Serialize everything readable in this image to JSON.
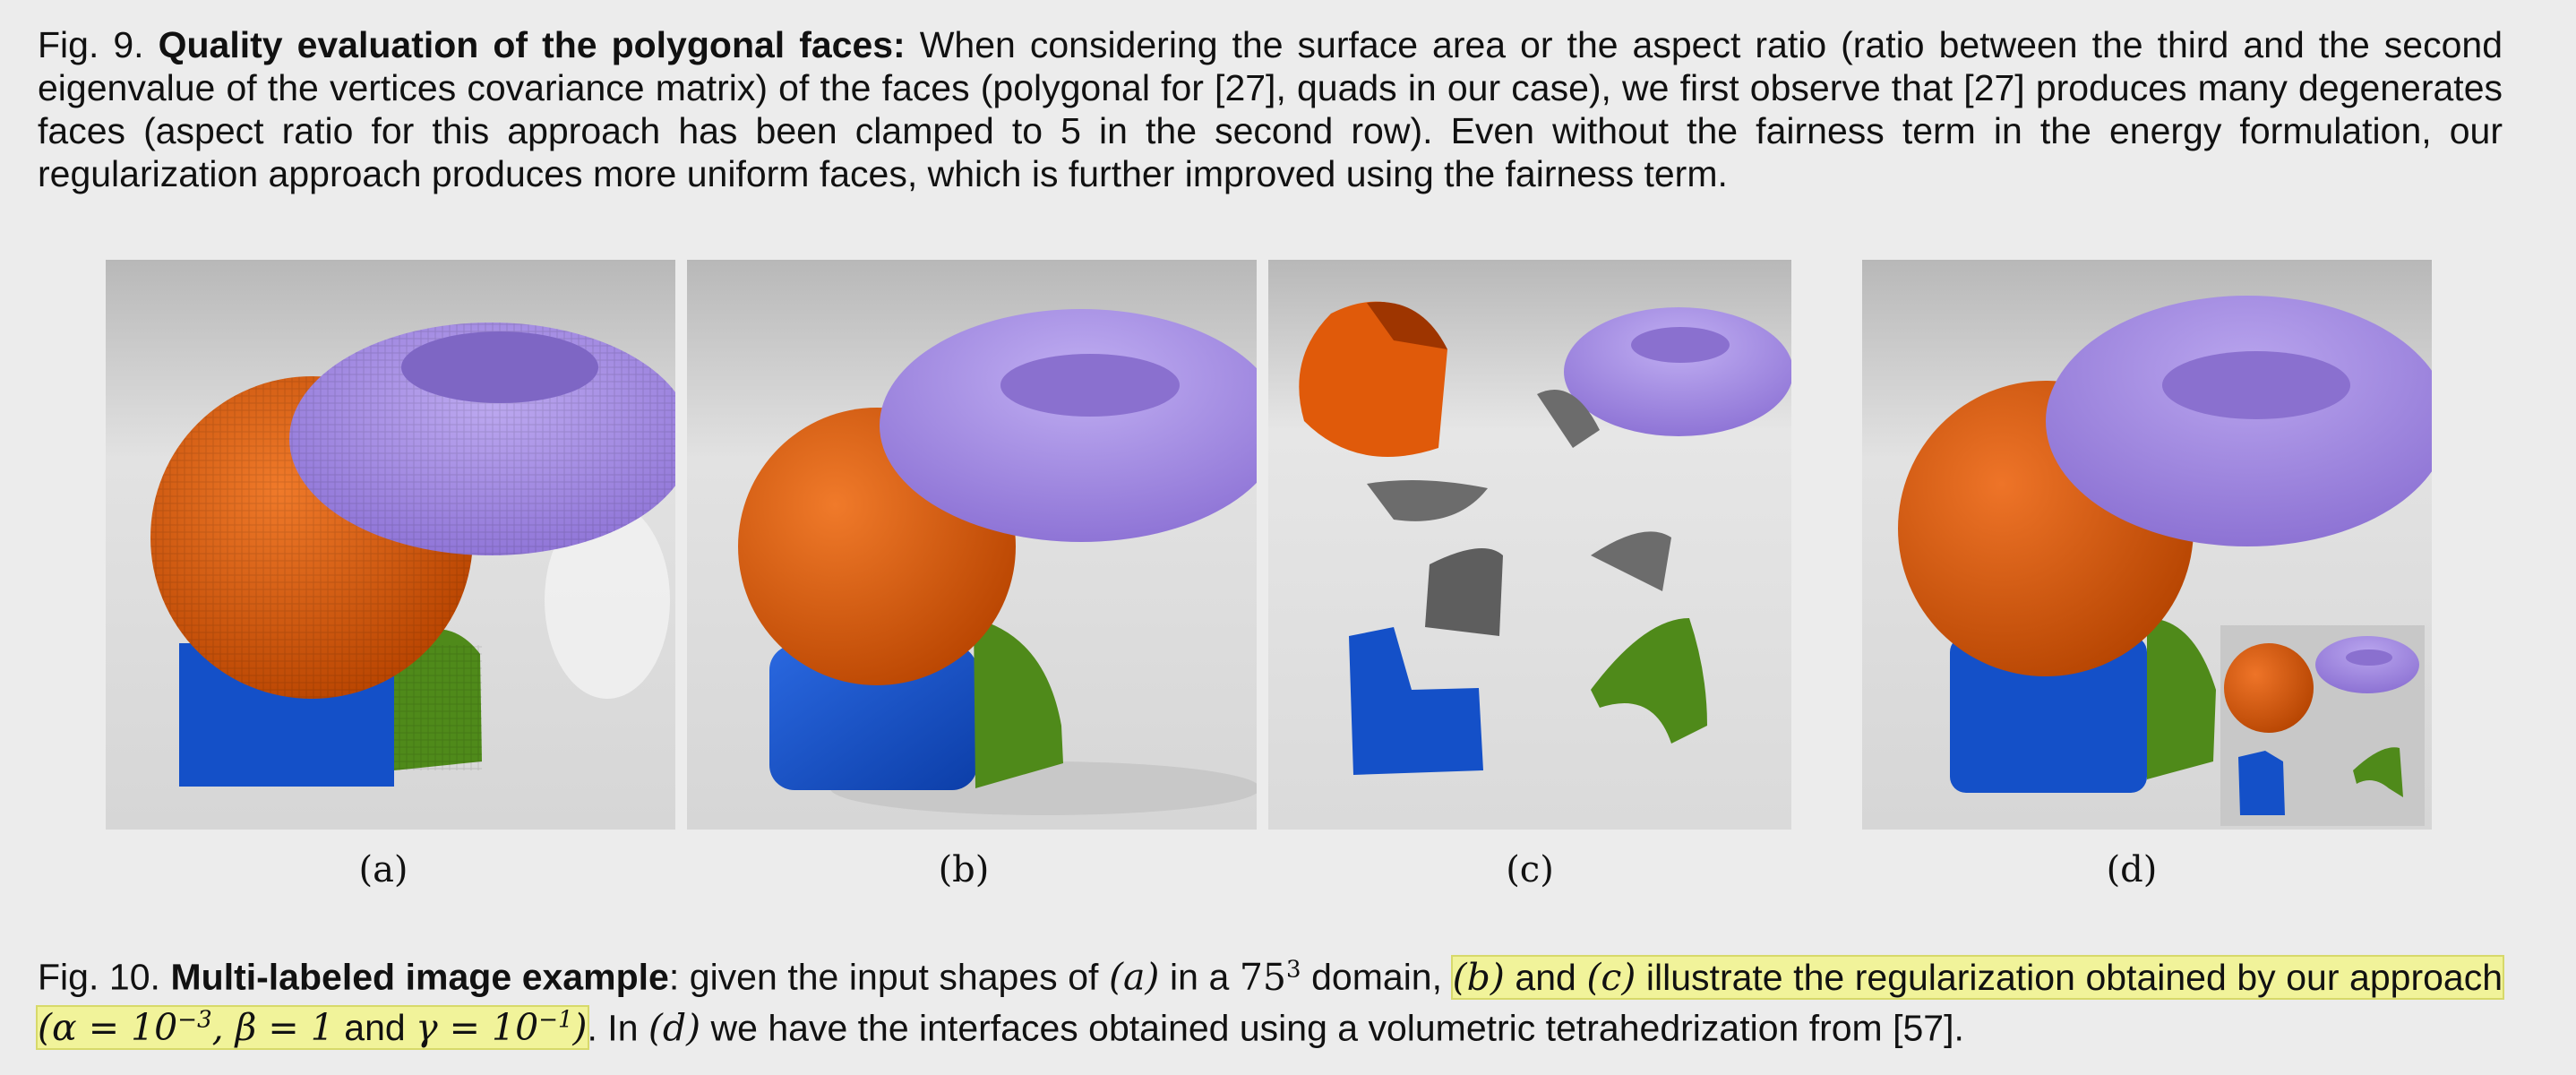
{
  "fig9": {
    "prefix": "Fig. 9. ",
    "title": "Quality evaluation of the polygonal faces:",
    "body": " When considering the surface area or the aspect ratio (ratio between the third and the second eigenvalue of the vertices covariance matrix) of the faces (polygonal for [27], quads in our case), we first observe that [27] produces many degenerates faces (aspect ratio for this approach has been clamped to 5 in the second row). Even without the fairness term in the energy formulation, our regularization approach produces more uniform faces, which is further improved using the fairness term."
  },
  "subfigures": [
    {
      "label": "(a)"
    },
    {
      "label": "(b)"
    },
    {
      "label": "(c)"
    },
    {
      "label": "(d)"
    }
  ],
  "fig10": {
    "prefix": "Fig. 10. ",
    "title": "Multi-labeled image example",
    "t1": ": given the input shapes of ",
    "m_a": "(a)",
    "t2": " in a ",
    "m_75": "75",
    "m_exp": "3",
    "t3": " domain, ",
    "m_b": "(b)",
    "t4": " and ",
    "m_c": "(c)",
    "t5": " illustrate the regularization obtained by our approach ",
    "m_params_1": "(α = 10",
    "m_params_1e": "−3",
    "m_params_2": ", β = 1",
    "t6": " and ",
    "m_params_3": "γ = 10",
    "m_params_3e": "−1",
    "m_params_end": ")",
    "t7": ". In ",
    "m_d": "(d)",
    "t8": " we have the interfaces obtained using a volumetric tetrahedrization from [57]."
  },
  "colors": {
    "sphere": "#e05a0a",
    "torus": "#a98fe6",
    "cube": "#1450c8",
    "cone": "#4f8a1a",
    "interface": "#6c6c6c",
    "highlight": "#f1f39a"
  }
}
